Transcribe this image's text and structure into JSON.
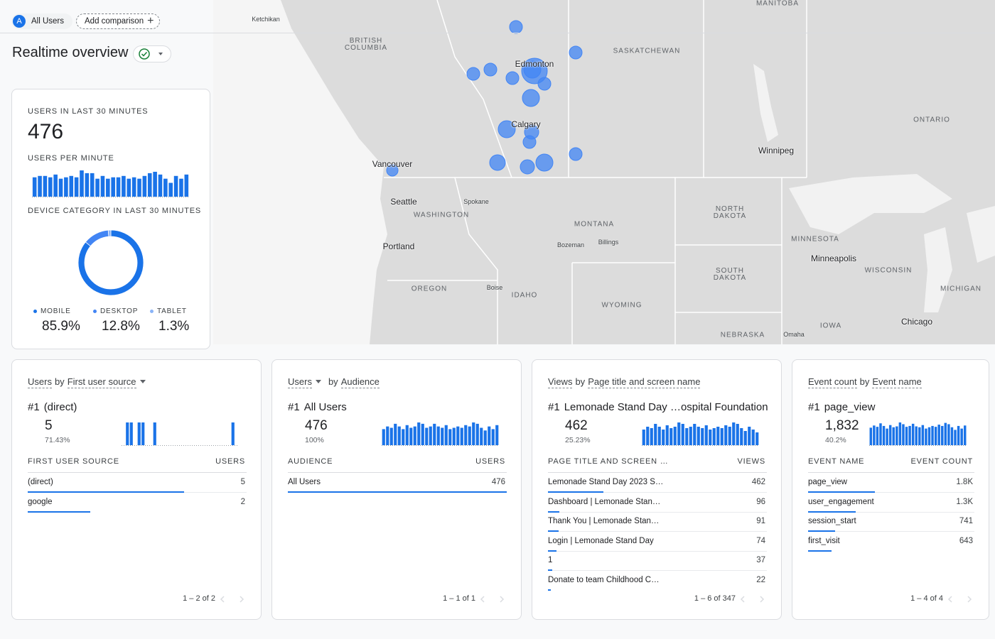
{
  "header": {
    "segment_badge": "A",
    "segment": "All Users",
    "add_comparison": "Add comparison"
  },
  "title": "Realtime overview",
  "map": {
    "labels": [
      "Ketchikan",
      "MANITOBA",
      "BRITISH COLUMBIA",
      "SASKATCHEWAN",
      "Edmonton",
      "Calgary",
      "Vancouver",
      "Winnipeg",
      "ONTARIO",
      "Seattle",
      "Spokane",
      "WASHINGTON",
      "NORTH DAKOTA",
      "MONTANA",
      "Bozeman",
      "Billings",
      "Portland",
      "MINNESOTA",
      "Minneapolis",
      "WISCONSIN",
      "SOUTH DAKOTA",
      "OREGON",
      "Boise",
      "IDAHO",
      "MICHIGAN",
      "WYOMING",
      "IOWA",
      "Chicago",
      "NEBRASKA",
      "Omaha"
    ]
  },
  "summary": {
    "users_label": "USERS IN LAST 30 MINUTES",
    "users": 476,
    "per_minute_label": "USERS PER MINUTE",
    "per_minute": {
      "type": "bar",
      "color": "#1a73e8",
      "values": [
        14,
        15,
        15,
        14,
        16,
        13,
        14,
        15,
        14,
        19,
        17,
        17,
        13,
        15,
        13,
        14,
        14,
        15,
        13,
        14,
        13,
        15,
        17,
        18,
        16,
        13,
        10,
        15,
        13,
        16
      ]
    },
    "device_label": "DEVICE CATEGORY IN LAST 30 MINUTES",
    "devices": {
      "type": "pie",
      "categories": [
        "MOBILE",
        "DESKTOP",
        "TABLET"
      ],
      "values": [
        85.9,
        12.8,
        1.3
      ],
      "value_labels": [
        "85.9%",
        "12.8%",
        "1.3%"
      ],
      "colors": [
        "#1a73e8",
        "#4285f4",
        "#8ab4f8"
      ]
    }
  },
  "cards": [
    {
      "title": [
        "Users",
        "by",
        "First user source"
      ],
      "dropdown": 2,
      "rank": "#1",
      "top_name": "(direct)",
      "top_value": 5,
      "top_share": 71.43,
      "top_share_label": "71.43%",
      "trend": {
        "type": "bar",
        "color": "#1a73e8",
        "values": [
          0,
          1,
          1,
          0,
          1,
          1,
          0,
          0,
          1,
          0,
          0,
          0,
          0,
          0,
          0,
          0,
          0,
          0,
          0,
          0,
          0,
          0,
          0,
          0,
          0,
          0,
          0,
          0,
          1,
          0
        ]
      },
      "columns": [
        "FIRST USER SOURCE",
        "USERS"
      ],
      "rows": [
        {
          "name": "(direct)",
          "value": 5
        },
        {
          "name": "google",
          "value": 2
        }
      ],
      "pagination": "1 – 2 of 2"
    },
    {
      "title": [
        "Users",
        "by",
        "Audience"
      ],
      "dropdown": 0,
      "rank": "#1",
      "top_name": "All Users",
      "top_value": 476,
      "top_share": 100,
      "top_share_label": "100%",
      "trend": {
        "type": "bar",
        "color": "#1a73e8",
        "values": [
          12,
          14,
          13,
          16,
          14,
          12,
          15,
          13,
          14,
          17,
          16,
          13,
          14,
          16,
          14,
          13,
          15,
          12,
          13,
          14,
          13,
          15,
          14,
          17,
          16,
          13,
          11,
          14,
          12,
          15
        ]
      },
      "columns": [
        "AUDIENCE",
        "USERS"
      ],
      "rows": [
        {
          "name": "All Users",
          "value": 476
        }
      ],
      "pagination": "1 – 1 of 1"
    },
    {
      "title": [
        "Views",
        "by",
        "Page title and screen name"
      ],
      "rank": "#1",
      "top_name": "Lemonade Stand Day …ospital Foundation",
      "top_value": 462,
      "top_share": 25.23,
      "top_share_label": "25.23%",
      "trend": {
        "type": "bar",
        "color": "#1a73e8",
        "values": [
          11,
          13,
          12,
          15,
          13,
          11,
          14,
          12,
          13,
          16,
          15,
          12,
          13,
          15,
          13,
          12,
          14,
          11,
          12,
          13,
          12,
          14,
          13,
          16,
          15,
          12,
          10,
          13,
          11,
          9
        ]
      },
      "columns": [
        "PAGE TITLE AND SCREEN …",
        "VIEWS"
      ],
      "rows": [
        {
          "name": "Lemonade Stand Day 2023 S…",
          "value": 462
        },
        {
          "name": "Dashboard | Lemonade Stan…",
          "value": 96
        },
        {
          "name": "Thank You | Lemonade Stan…",
          "value": 91
        },
        {
          "name": "Login | Lemonade Stand Day",
          "value": 74
        },
        {
          "name": "1",
          "value": 37
        },
        {
          "name": "Donate to team Childhood C…",
          "value": 22
        }
      ],
      "pagination": "1 – 6 of 347"
    },
    {
      "title": [
        "Event count",
        "by",
        "Event name"
      ],
      "rank": "#1",
      "top_name": "page_view",
      "top_value": 1832,
      "top_value_label": "1,832",
      "top_share": 40.2,
      "top_share_label": "40.2%",
      "trend": {
        "type": "bar",
        "color": "#1a73e8",
        "values": [
          40,
          45,
          42,
          50,
          44,
          38,
          46,
          41,
          43,
          52,
          48,
          42,
          44,
          49,
          43,
          41,
          46,
          38,
          41,
          44,
          42,
          47,
          44,
          51,
          48,
          41,
          35,
          44,
          38,
          45
        ]
      },
      "columns": [
        "EVENT NAME",
        "EVENT COUNT"
      ],
      "rows": [
        {
          "name": "page_view",
          "value": 1832,
          "value_label": "1.8K"
        },
        {
          "name": "user_engagement",
          "value": 1300,
          "value_label": "1.3K"
        },
        {
          "name": "session_start",
          "value": 741
        },
        {
          "name": "first_visit",
          "value": 643
        }
      ],
      "pagination": "1 – 4 of 4"
    }
  ]
}
